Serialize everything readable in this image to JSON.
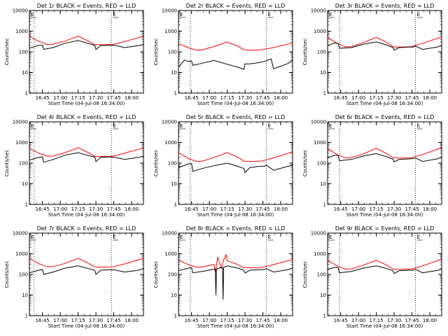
{
  "chart_data": [
    {
      "type": "line",
      "title": "Det 1r BLACK = Events, RED = LLD",
      "xlabel": "Start Time (04-Jul-08 16:34:00)",
      "ylabel": "Counts/sec",
      "x_tick_labels": [
        "16:45",
        "17:00",
        "17:15",
        "17:30",
        "17:45",
        "18:00"
      ],
      "x_tick_minutes": [
        11,
        26,
        41,
        56,
        71,
        86
      ],
      "xlim_minutes": [
        0,
        96
      ],
      "y_tick_labels": [
        "1",
        "10",
        "100",
        "1000",
        "10000"
      ],
      "ylim": [
        1,
        10000
      ],
      "y_scale": "log",
      "marker_label": "E",
      "vlines_minutes": [
        4,
        69
      ],
      "series": [
        {
          "name": "Events",
          "color": "#000000",
          "x_minutes": [
            0,
            8,
            11,
            12,
            20,
            30,
            41,
            50,
            55,
            56,
            60,
            68,
            72,
            80,
            92,
            96
          ],
          "values": [
            150,
            205,
            210,
            130,
            160,
            260,
            350,
            250,
            205,
            130,
            200,
            210,
            205,
            160,
            200,
            230
          ]
        },
        {
          "name": "LLD",
          "color": "#ff0000",
          "x_minutes": [
            0,
            8,
            15,
            20,
            30,
            41,
            50,
            55,
            60,
            70,
            80,
            96
          ],
          "values": [
            560,
            320,
            225,
            235,
            330,
            580,
            320,
            220,
            220,
            225,
            310,
            570
          ]
        }
      ]
    },
    {
      "type": "line",
      "title": "Det 2r BLACK = Events, RED = LLD",
      "xlabel": "Start Time (04-Jul-08 16:34:00)",
      "ylabel": "Counts/sec",
      "x_tick_labels": [
        "16:45",
        "17:00",
        "17:15",
        "17:30",
        "17:45",
        "18:00"
      ],
      "x_tick_minutes": [
        11,
        26,
        41,
        56,
        71,
        86
      ],
      "xlim_minutes": [
        0,
        96
      ],
      "y_tick_labels": [
        "1",
        "10",
        "100",
        "1000",
        "10000"
      ],
      "ylim": [
        1,
        10000
      ],
      "y_scale": "log",
      "marker_label": "E",
      "vlines_minutes": [
        10,
        74
      ],
      "series": [
        {
          "name": "Events",
          "color": "#000000",
          "x_minutes": [
            0,
            5,
            8,
            11,
            12,
            20,
            30,
            41,
            50,
            55,
            56,
            60,
            68,
            72,
            78,
            80,
            92,
            96
          ],
          "values": [
            18,
            40,
            34,
            36,
            22,
            28,
            38,
            25,
            18,
            14,
            26,
            26,
            30,
            34,
            45,
            15,
            27,
            40
          ]
        },
        {
          "name": "LLD",
          "color": "#ff0000",
          "x_minutes": [
            0,
            8,
            15,
            20,
            30,
            41,
            50,
            55,
            60,
            70,
            80,
            96
          ],
          "values": [
            250,
            160,
            120,
            125,
            180,
            300,
            185,
            125,
            120,
            125,
            160,
            270
          ]
        }
      ]
    },
    {
      "type": "line",
      "title": "Det 3r BLACK = Events, RED = LLD",
      "xlabel": "Start Time (04-Jul-08 16:34:00)",
      "ylabel": "Counts/sec",
      "x_tick_labels": [
        "16:45",
        "17:00",
        "17:15",
        "17:30",
        "17:45",
        "18:00"
      ],
      "x_tick_minutes": [
        11,
        26,
        41,
        56,
        71,
        86
      ],
      "xlim_minutes": [
        0,
        96
      ],
      "y_tick_labels": [
        "1",
        "10",
        "100",
        "1000",
        "10000"
      ],
      "ylim": [
        1,
        10000
      ],
      "y_scale": "log",
      "marker_label": "E",
      "vlines_minutes": [
        10,
        74
      ],
      "series": [
        {
          "name": "Events",
          "color": "#000000",
          "x_minutes": [
            0,
            6,
            9,
            10,
            20,
            30,
            41,
            50,
            55,
            56,
            60,
            68,
            72,
            74,
            80,
            92,
            96
          ],
          "values": [
            200,
            270,
            250,
            150,
            160,
            230,
            300,
            210,
            160,
            120,
            160,
            170,
            170,
            190,
            130,
            170,
            200
          ]
        },
        {
          "name": "LLD",
          "color": "#ff0000",
          "x_minutes": [
            0,
            8,
            15,
            20,
            30,
            41,
            50,
            55,
            60,
            70,
            80,
            96
          ],
          "values": [
            500,
            260,
            175,
            180,
            280,
            500,
            280,
            175,
            170,
            175,
            260,
            520
          ]
        }
      ]
    },
    {
      "type": "line",
      "title": "Det 4r BLACK = Events, RED = LLD",
      "xlabel": "Start Time (04-Jul-08 16:34:00)",
      "ylabel": "Counts/sec",
      "x_tick_labels": [
        "16:45",
        "17:00",
        "17:15",
        "17:30",
        "17:45",
        "18:00"
      ],
      "x_tick_minutes": [
        11,
        26,
        41,
        56,
        71,
        86
      ],
      "xlim_minutes": [
        0,
        96
      ],
      "y_tick_labels": [
        "1",
        "10",
        "100",
        "1000",
        "10000"
      ],
      "ylim": [
        1,
        10000
      ],
      "y_scale": "log",
      "marker_label": "E",
      "vlines_minutes": [
        4,
        69
      ],
      "series": [
        {
          "name": "Events",
          "color": "#000000",
          "x_minutes": [
            0,
            8,
            11,
            12,
            20,
            30,
            41,
            50,
            55,
            56,
            60,
            68,
            72,
            80,
            92,
            96
          ],
          "values": [
            140,
            190,
            200,
            110,
            150,
            240,
            320,
            230,
            195,
            120,
            190,
            200,
            190,
            150,
            190,
            220
          ]
        },
        {
          "name": "LLD",
          "color": "#ff0000",
          "x_minutes": [
            0,
            8,
            15,
            20,
            30,
            41,
            50,
            55,
            60,
            70,
            80,
            96
          ],
          "values": [
            520,
            300,
            215,
            220,
            320,
            560,
            310,
            210,
            210,
            215,
            300,
            550
          ]
        }
      ]
    },
    {
      "type": "line",
      "title": "Det 5r BLACK = Events, RED = LLD",
      "xlabel": "Start Time (04-Jul-08 16:34:00)",
      "ylabel": "Counts/sec",
      "x_tick_labels": [
        "16:45",
        "17:00",
        "17:15",
        "17:30",
        "17:45",
        "18:00"
      ],
      "x_tick_minutes": [
        11,
        26,
        41,
        56,
        71,
        86
      ],
      "xlim_minutes": [
        0,
        96
      ],
      "y_tick_labels": [
        "1",
        "10",
        "100",
        "1000",
        "10000"
      ],
      "ylim": [
        1,
        10000
      ],
      "y_scale": "log",
      "marker_label": "E",
      "vlines_minutes": [
        10,
        74
      ],
      "series": [
        {
          "name": "Events",
          "color": "#000000",
          "x_minutes": [
            0,
            8,
            11,
            12,
            20,
            30,
            41,
            50,
            55,
            56,
            60,
            68,
            72,
            74,
            80,
            92,
            96
          ],
          "values": [
            60,
            90,
            95,
            40,
            55,
            75,
            100,
            70,
            55,
            35,
            60,
            70,
            70,
            80,
            45,
            70,
            80
          ]
        },
        {
          "name": "LLD",
          "color": "#ff0000",
          "x_minutes": [
            0,
            8,
            15,
            20,
            30,
            41,
            50,
            55,
            60,
            70,
            80,
            96
          ],
          "values": [
            320,
            170,
            120,
            125,
            190,
            320,
            190,
            125,
            120,
            125,
            180,
            350
          ]
        }
      ]
    },
    {
      "type": "line",
      "title": "Det 6r BLACK = Events, RED = LLD",
      "xlabel": "Start Time (04-Jul-08 16:34:00)",
      "ylabel": "Counts/sec",
      "x_tick_labels": [
        "16:45",
        "17:00",
        "17:15",
        "17:30",
        "17:45",
        "18:00"
      ],
      "x_tick_minutes": [
        11,
        26,
        41,
        56,
        71,
        86
      ],
      "xlim_minutes": [
        0,
        96
      ],
      "y_tick_labels": [
        "1",
        "10",
        "100",
        "1000",
        "10000"
      ],
      "ylim": [
        1,
        10000
      ],
      "y_scale": "log",
      "marker_label": "E",
      "vlines_minutes": [
        10,
        74
      ],
      "series": [
        {
          "name": "Events",
          "color": "#000000",
          "x_minutes": [
            0,
            6,
            9,
            10,
            20,
            30,
            41,
            50,
            55,
            56,
            60,
            68,
            72,
            74,
            80,
            92,
            96
          ],
          "values": [
            180,
            240,
            230,
            130,
            150,
            220,
            290,
            200,
            155,
            115,
            150,
            160,
            165,
            180,
            120,
            160,
            190
          ]
        },
        {
          "name": "LLD",
          "color": "#ff0000",
          "x_minutes": [
            0,
            8,
            15,
            20,
            30,
            41,
            50,
            55,
            60,
            70,
            80,
            96
          ],
          "values": [
            500,
            260,
            180,
            185,
            280,
            520,
            280,
            180,
            175,
            180,
            260,
            560
          ]
        }
      ]
    },
    {
      "type": "line",
      "title": "Det 7r BLACK = Events, RED = LLD",
      "xlabel": "Start Time (04-Jul-08 16:34:00)",
      "ylabel": "Counts/sec",
      "x_tick_labels": [
        "16:45",
        "17:00",
        "17:15",
        "17:30",
        "17:45",
        "18:00"
      ],
      "x_tick_minutes": [
        11,
        26,
        41,
        56,
        71,
        86
      ],
      "xlim_minutes": [
        0,
        96
      ],
      "y_tick_labels": [
        "1",
        "10",
        "100",
        "1000",
        "10000"
      ],
      "ylim": [
        1,
        10000
      ],
      "y_scale": "log",
      "marker_label": "E",
      "vlines_minutes": [
        4,
        69
      ],
      "series": [
        {
          "name": "Events",
          "color": "#000000",
          "x_minutes": [
            0,
            8,
            11,
            12,
            20,
            30,
            41,
            50,
            55,
            56,
            60,
            68,
            72,
            80,
            92,
            96
          ],
          "values": [
            120,
            160,
            170,
            100,
            130,
            200,
            260,
            190,
            160,
            100,
            160,
            170,
            165,
            130,
            160,
            190
          ]
        },
        {
          "name": "LLD",
          "color": "#ff0000",
          "x_minutes": [
            0,
            8,
            15,
            20,
            30,
            41,
            50,
            55,
            60,
            70,
            80,
            96
          ],
          "values": [
            600,
            330,
            230,
            240,
            340,
            600,
            330,
            230,
            225,
            230,
            320,
            600
          ]
        }
      ]
    },
    {
      "type": "line",
      "title": "Det 8r BLACK = Events, RED = LLD",
      "xlabel": "Start Time (04-Jul-08 16:34:00)",
      "ylabel": "Counts/sec",
      "x_tick_labels": [
        "16:45",
        "17:00",
        "17:15",
        "17:30",
        "17:45",
        "18:00"
      ],
      "x_tick_minutes": [
        11,
        26,
        41,
        56,
        71,
        86
      ],
      "xlim_minutes": [
        0,
        96
      ],
      "y_tick_labels": [
        "1",
        "10",
        "100",
        "1000",
        "10000"
      ],
      "ylim": [
        1,
        10000
      ],
      "y_scale": "log",
      "marker_label": "E",
      "vlines_minutes": [
        10,
        74
      ],
      "series": [
        {
          "name": "Events",
          "color": "#000000",
          "x_minutes": [
            0,
            8,
            11,
            12,
            20,
            30,
            31,
            31.5,
            32,
            36,
            37,
            37.5,
            38,
            41,
            50,
            55,
            56,
            60,
            68,
            72,
            74,
            80,
            92,
            96
          ],
          "values": [
            150,
            200,
            210,
            120,
            140,
            180,
            180,
            10,
            180,
            220,
            220,
            6,
            220,
            260,
            200,
            160,
            115,
            160,
            170,
            170,
            190,
            130,
            170,
            200
          ]
        },
        {
          "name": "LLD",
          "color": "#ff0000",
          "x_minutes": [
            0,
            8,
            15,
            20,
            30,
            31,
            33,
            36,
            38,
            40,
            41,
            44,
            50,
            55,
            60,
            70,
            80,
            96
          ],
          "values": [
            500,
            300,
            220,
            230,
            300,
            120,
            700,
            200,
            500,
            900,
            450,
            400,
            300,
            210,
            210,
            215,
            300,
            520
          ]
        }
      ]
    },
    {
      "type": "line",
      "title": "Det 9r BLACK = Events, RED = LLD",
      "xlabel": "Start Time (04-Jul-08 16:34:00)",
      "ylabel": "Counts/sec",
      "x_tick_labels": [
        "16:45",
        "17:00",
        "17:15",
        "17:30",
        "17:45",
        "18:00"
      ],
      "x_tick_minutes": [
        11,
        26,
        41,
        56,
        71,
        86
      ],
      "xlim_minutes": [
        0,
        96
      ],
      "y_tick_labels": [
        "1",
        "10",
        "100",
        "1000",
        "10000"
      ],
      "ylim": [
        1,
        10000
      ],
      "y_scale": "log",
      "marker_label": "E",
      "vlines_minutes": [
        10,
        74
      ],
      "series": [
        {
          "name": "Events",
          "color": "#000000",
          "x_minutes": [
            0,
            6,
            9,
            10,
            20,
            30,
            41,
            50,
            55,
            56,
            60,
            68,
            72,
            74,
            80,
            92,
            96
          ],
          "values": [
            170,
            220,
            210,
            120,
            140,
            200,
            260,
            190,
            150,
            110,
            150,
            160,
            160,
            175,
            120,
            155,
            180
          ]
        },
        {
          "name": "LLD",
          "color": "#ff0000",
          "x_minutes": [
            0,
            8,
            15,
            20,
            30,
            41,
            50,
            55,
            60,
            70,
            80,
            96
          ],
          "values": [
            480,
            260,
            180,
            185,
            280,
            480,
            280,
            180,
            175,
            180,
            260,
            540
          ]
        }
      ]
    }
  ]
}
